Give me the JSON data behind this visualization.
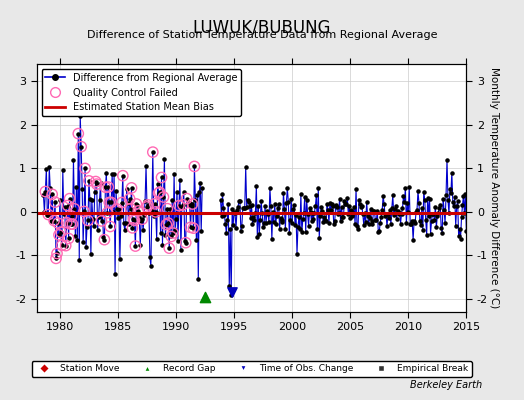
{
  "title": "LUWUK/BUBUNG",
  "subtitle": "Difference of Station Temperature Data from Regional Average",
  "ylabel": "Monthly Temperature Anomaly Difference (°C)",
  "xlabel_years": [
    1980,
    1985,
    1990,
    1995,
    2000,
    2005,
    2010,
    2015
  ],
  "xlim": [
    1978,
    2015
  ],
  "ylim": [
    -2.3,
    3.4
  ],
  "yticks": [
    -2,
    -1,
    0,
    1,
    2,
    3
  ],
  "bias_line_y": -0.02,
  "record_gap_x": 1992.5,
  "record_gap_y": -1.95,
  "obs_change_x": 1994.8,
  "obs_change_y": -1.85,
  "bg_color": "#e8e8e8",
  "plot_bg_color": "#ffffff",
  "line_color": "#0000cc",
  "dot_color": "#000000",
  "bias_color": "#cc0000",
  "qc_color": "#ff69b4",
  "grid_color": "#cccccc",
  "berkeley_earth_text": "Berkeley Earth",
  "seed": 42
}
